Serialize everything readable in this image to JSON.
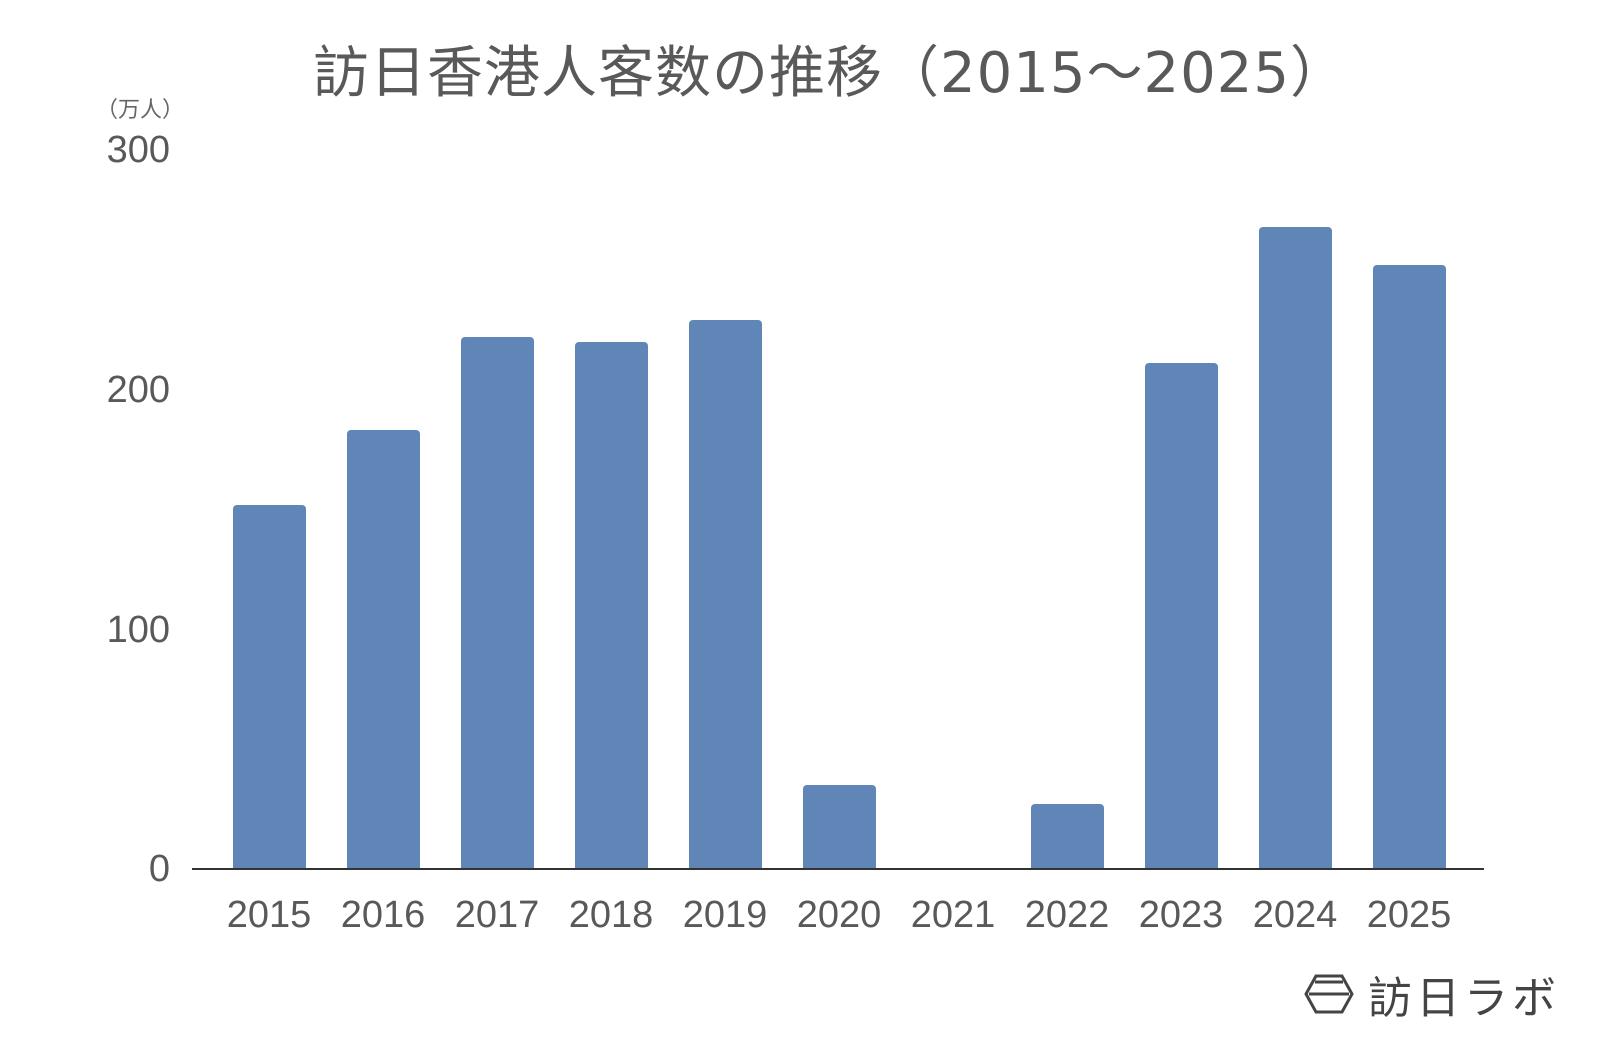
{
  "chart_data": {
    "type": "bar",
    "title": "訪日香港人客数の推移（2015～2025）",
    "ylabel": "（万人）",
    "xlabel": "",
    "categories": [
      "2015",
      "2016",
      "2017",
      "2018",
      "2019",
      "2020",
      "2021",
      "2022",
      "2023",
      "2024",
      "2025"
    ],
    "values": [
      152,
      183,
      222,
      220,
      229,
      35,
      0,
      27,
      211,
      268,
      252
    ],
    "ylim": [
      0,
      300
    ],
    "yticks": [
      "0",
      "100",
      "200",
      "300"
    ],
    "grid": false,
    "legend": null,
    "bar_color": "#5f86b7"
  },
  "branding": {
    "logo_text": "訪日ラボ"
  }
}
